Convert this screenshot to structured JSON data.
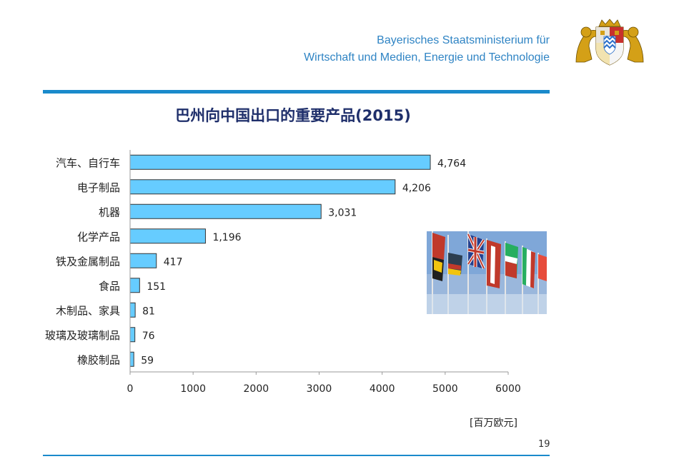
{
  "header": {
    "ministry_line1": "Bayerisches Staatsministerium für",
    "ministry_line2": "Wirtschaft und Medien, Energie und Technologie"
  },
  "slide": {
    "title": "巴州向中国出口的重要产品(2015)",
    "unit": "[百万欧元]",
    "page_number": "19"
  },
  "chart_data": {
    "type": "bar",
    "orientation": "horizontal",
    "title": "巴州向中国出口的重要产品(2015)",
    "categories": [
      "汽车、自行车",
      "电子制品",
      "机器",
      "化学产品",
      "铁及金属制品",
      "食品",
      "木制品、家具",
      "玻璃及玻璃制品",
      "橡胶制品"
    ],
    "values": [
      4764,
      4206,
      3031,
      1196,
      417,
      151,
      81,
      76,
      59
    ],
    "value_labels": [
      "4,764",
      "4,206",
      "3,031",
      "1,196",
      "417",
      "151",
      "81",
      "76",
      "59"
    ],
    "xlim": [
      0,
      6000
    ],
    "xticks": [
      0,
      1000,
      2000,
      3000,
      4000,
      5000,
      6000
    ],
    "xlabel": "[百万欧元]",
    "bar_color": "#66ccff"
  },
  "colors": {
    "accent": "#1a8acb",
    "ministry_text": "#2f84c4",
    "title_text": "#1f2f6b",
    "crest_gold": "#d4a017",
    "crest_blue": "#2a6fc9"
  },
  "icons": {
    "crest": "bavarian-coat-of-arms-icon"
  }
}
